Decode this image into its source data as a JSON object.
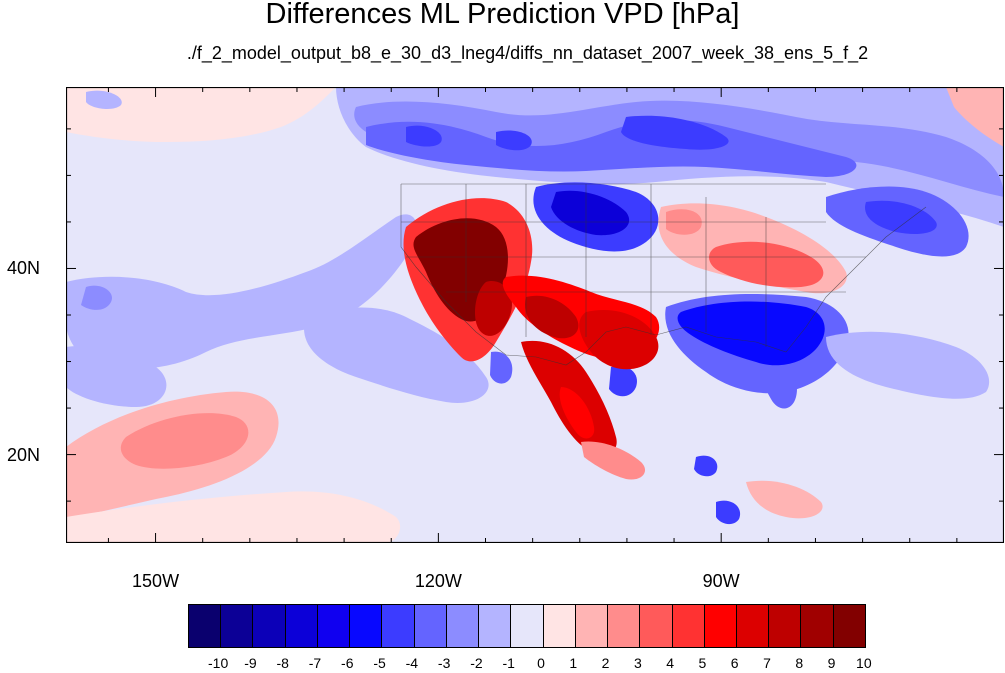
{
  "title": "Differences ML Prediction VPD [hPa]",
  "subtitle": "./f_2_model_output_b8_e_30_d3_lneg4/diffs_nn_dataset_2007_week_38_ens_5_f_2",
  "axes": {
    "lat_ticks": [
      {
        "label": "40N",
        "value": 40
      },
      {
        "label": "20N",
        "value": 20
      }
    ],
    "lon_ticks": [
      {
        "label": "150W",
        "value": -150
      },
      {
        "label": "120W",
        "value": -120
      },
      {
        "label": "90W",
        "value": -90
      }
    ],
    "lon_range": [
      -159.5,
      -60
    ],
    "lat_range": [
      10.5,
      59.5
    ]
  },
  "colorbar": {
    "labels": [
      "-10",
      "-9",
      "-8",
      "-7",
      "-6",
      "-5",
      "-4",
      "-3",
      "-2",
      "-1",
      "0",
      "1",
      "2",
      "3",
      "4",
      "5",
      "6",
      "7",
      "8",
      "9",
      "10"
    ],
    "colors": [
      "#0a006e",
      "#0c0096",
      "#0c00b8",
      "#0c00d8",
      "#1000f0",
      "#0808ff",
      "#3c3cff",
      "#6464ff",
      "#8c8cff",
      "#b4b4ff",
      "#e6e6fa",
      "#ffe4e4",
      "#ffb4b4",
      "#ff8c8c",
      "#ff5a5a",
      "#ff3232",
      "#ff0000",
      "#dc0000",
      "#be0000",
      "#a00000",
      "#820000"
    ]
  },
  "regions": [
    {
      "name": "alaska-coast-positive",
      "color": "#ffe4e4"
    },
    {
      "name": "canada-blue-band",
      "color": "#6464ff"
    },
    {
      "name": "northern-plains-strong-blue",
      "color": "#0c00d8"
    },
    {
      "name": "west-coast-dark-red",
      "color": "#820000"
    },
    {
      "name": "southwest-red",
      "color": "#ff0000"
    },
    {
      "name": "mexico-red-band",
      "color": "#dc0000"
    },
    {
      "name": "southeast-strong-blue",
      "color": "#0808ff"
    },
    {
      "name": "midwest-red-band",
      "color": "#ff5a5a"
    },
    {
      "name": "northeast-blue",
      "color": "#3c3cff"
    },
    {
      "name": "pacific-light-blue",
      "color": "#b4b4ff"
    },
    {
      "name": "hawaii-pink",
      "color": "#ffb4b4"
    },
    {
      "name": "caribbean-blue-spots",
      "color": "#3c3cff"
    }
  ]
}
